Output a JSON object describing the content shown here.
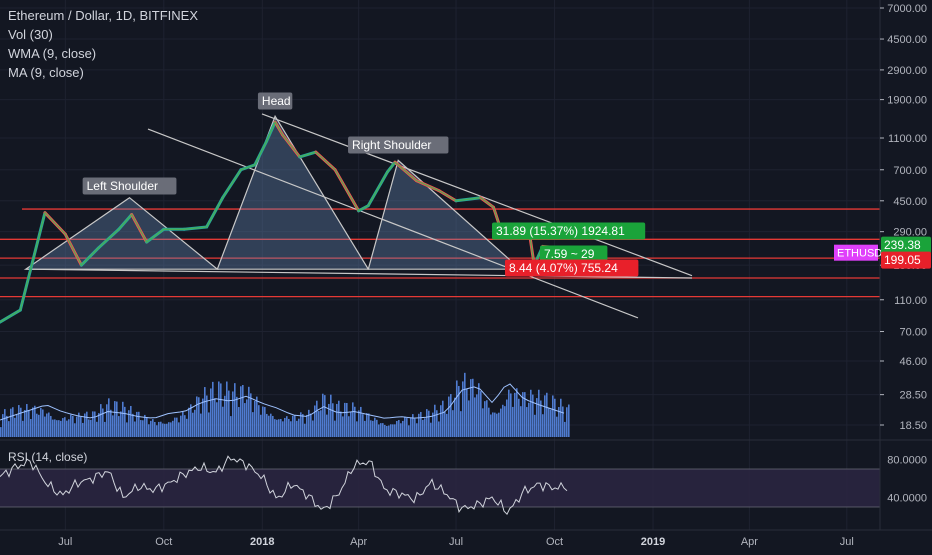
{
  "header": {
    "title": "Ethereum / Dollar, 1D, BITFINEX",
    "indicators": [
      "Vol (30)",
      "WMA (9, close)",
      "MA (9, close)"
    ]
  },
  "colors": {
    "background": "#131722",
    "grid": "#1e2230",
    "axis_text": "#b2b5be",
    "candle_up": "#26a69a",
    "candle_down": "#ef5350",
    "wma_line": "#4caf50",
    "volume": "#5b8def",
    "level_line": "#e53935",
    "trend_line": "#c8c8c8",
    "pattern_fill": "#6b8cba",
    "rsi_band": "#2a2540",
    "rsi_line": "#d1d4dc",
    "label_green": "#1aa33a",
    "label_red": "#e8202a",
    "label_magenta": "#e040fb",
    "label_gray": "#6a6d78"
  },
  "chart_data": {
    "type": "line",
    "title": "Ethereum / Dollar, 1D, BITFINEX",
    "y_scale": "log",
    "x_ticks": [
      "Jul",
      "Oct",
      "2018",
      "Apr",
      "Jul",
      "Oct",
      "2019",
      "Apr",
      "Jul"
    ],
    "price_axis_ticks": [
      "7000.00",
      "4500.00",
      "2900.00",
      "1900.00",
      "1100.00",
      "700.00",
      "450.00",
      "290.00",
      "180.00",
      "110.00",
      "70.00",
      "46.00",
      "28.50",
      "18.50"
    ],
    "rsi_axis_ticks": [
      "80.0000",
      "40.0000"
    ],
    "rsi_label": "RSI (14, close)",
    "price_series": {
      "name": "ETHUSD",
      "dates": [
        "2017-05-01",
        "2017-05-20",
        "2017-06-12",
        "2017-07-01",
        "2017-07-16",
        "2017-08-01",
        "2017-08-20",
        "2017-09-01",
        "2017-09-15",
        "2017-10-01",
        "2017-10-20",
        "2017-11-10",
        "2017-11-25",
        "2017-12-12",
        "2017-12-25",
        "2018-01-05",
        "2018-01-13",
        "2018-01-20",
        "2018-02-05",
        "2018-02-20",
        "2018-03-10",
        "2018-04-01",
        "2018-04-10",
        "2018-04-28",
        "2018-05-05",
        "2018-05-25",
        "2018-06-15",
        "2018-07-01",
        "2018-07-24",
        "2018-08-05",
        "2018-08-14",
        "2018-08-25",
        "2018-09-07",
        "2018-09-12",
        "2018-09-20",
        "2018-10-01",
        "2018-10-10",
        "2018-10-15"
      ],
      "values": [
        80,
        95,
        380,
        280,
        180,
        230,
        300,
        370,
        250,
        300,
        300,
        310,
        470,
        700,
        750,
        1050,
        1380,
        1150,
        840,
        900,
        700,
        390,
        420,
        680,
        780,
        600,
        520,
        450,
        470,
        410,
        270,
        275,
        300,
        180,
        235,
        232,
        220,
        199
      ]
    },
    "volume_series": {
      "name": "Vol (30)",
      "values": [
        20,
        26,
        32,
        38,
        30,
        25,
        22,
        30,
        28,
        24,
        22,
        28,
        30,
        40,
        45,
        42,
        48,
        40,
        34,
        26,
        24,
        36,
        28,
        30,
        26,
        22,
        24,
        22,
        24,
        30,
        55,
        60,
        40,
        65,
        45,
        38,
        32,
        26
      ]
    },
    "rsi_series": {
      "name": "RSI (14, close)",
      "values": [
        62,
        72,
        78,
        55,
        42,
        55,
        60,
        68,
        40,
        52,
        48,
        55,
        65,
        72,
        66,
        82,
        75,
        62,
        38,
        55,
        42,
        26,
        44,
        74,
        78,
        48,
        44,
        38,
        56,
        44,
        28,
        32,
        40,
        24,
        46,
        54,
        50,
        52
      ]
    },
    "horizontal_levels": [
      400,
      260,
      199.05,
      150,
      115
    ],
    "annotations": [
      {
        "text": "Left Shoulder",
        "style": "gray"
      },
      {
        "text": "Head",
        "style": "gray"
      },
      {
        "text": "Right Shoulder",
        "style": "gray"
      },
      {
        "text": "31.89 (15.37%) 1924.81",
        "style": "green"
      },
      {
        "text": "7.59 ~ 29",
        "style": "green"
      },
      {
        "text": "8.44 (4.07%) 755.24",
        "style": "red"
      },
      {
        "text": "239.38",
        "style": "green"
      },
      {
        "text": "199.05",
        "style": "red"
      },
      {
        "text": "ETHUSD",
        "style": "magenta"
      }
    ]
  }
}
